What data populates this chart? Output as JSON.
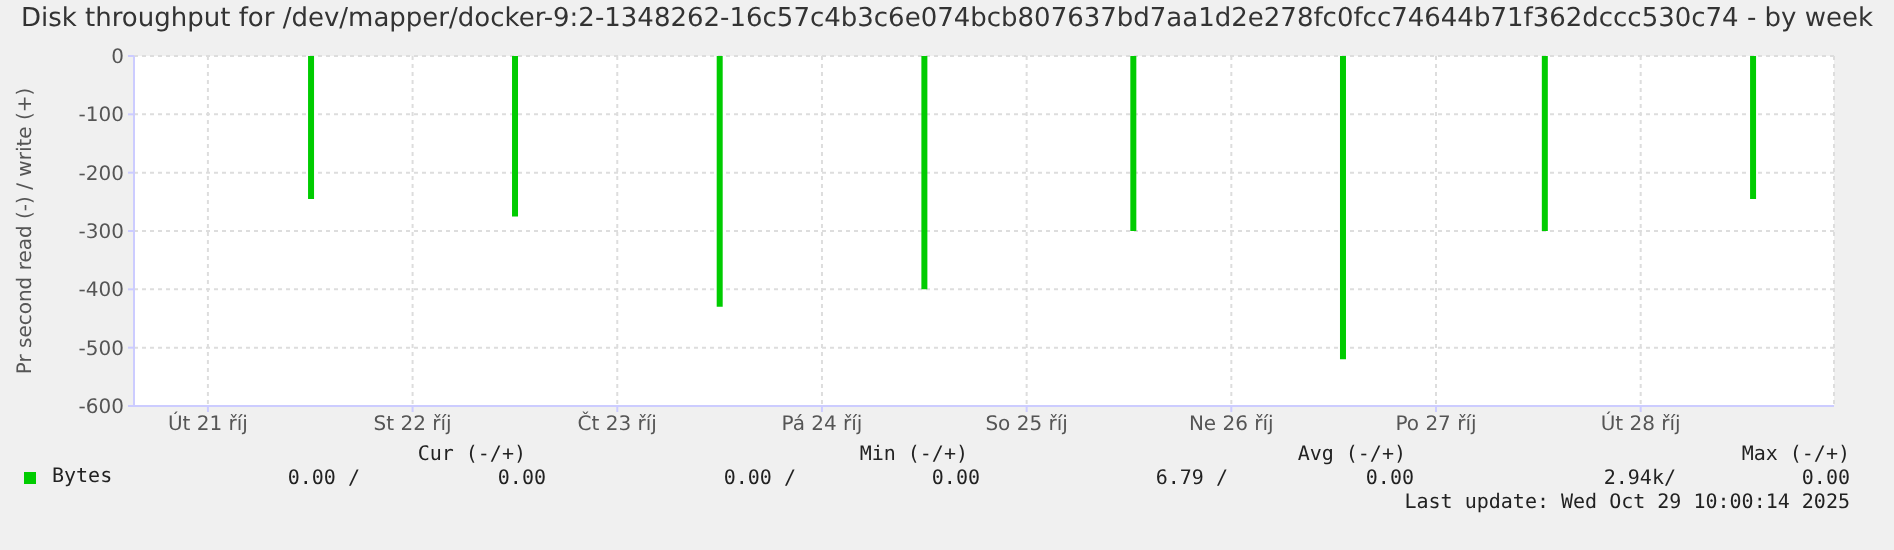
{
  "chart_data": {
    "type": "bar",
    "title": "Disk throughput for /dev/mapper/docker-9:2-1348262-16c57c4b3c6e074bcb807637bd7aa1d2e278fc0fcc74644b71f362dccc530c74 - by week",
    "ylabel": "Pr second read (-) / write (+)",
    "x": [
      "2025-10-22T00:05",
      "2025-10-23T00:00",
      "2025-10-24T00:00",
      "2025-10-25T00:00",
      "2025-10-26T00:30",
      "2025-10-27T01:05",
      "2025-10-28T00:45",
      "2025-10-29T01:10"
    ],
    "series": [
      {
        "name": "Bytes",
        "color": "#00cc00",
        "values": [
          -245,
          -275,
          -430,
          -400,
          -300,
          -520,
          -300,
          -245
        ]
      }
    ],
    "xlim": [
      "2025-10-21T03:20",
      "2025-10-29T10:40"
    ],
    "xticks": [
      {
        "value": "2025-10-21T12:00",
        "label": "Út 21 říj"
      },
      {
        "value": "2025-10-22T12:00",
        "label": "St 22 říj"
      },
      {
        "value": "2025-10-23T12:00",
        "label": "Čt 23 říj"
      },
      {
        "value": "2025-10-24T12:00",
        "label": "Pá 24 říj"
      },
      {
        "value": "2025-10-25T12:00",
        "label": "So 25 říj"
      },
      {
        "value": "2025-10-26T12:00",
        "label": "Ne 26 říj"
      },
      {
        "value": "2025-10-27T12:00",
        "label": "Po 27 říj"
      },
      {
        "value": "2025-10-28T12:00",
        "label": "Út 28 říj"
      }
    ],
    "ylim": [
      -600,
      0
    ],
    "yticks": [
      -600,
      -500,
      -400,
      -300,
      -200,
      -100,
      0
    ],
    "grid": true,
    "legend": "bottom",
    "annotations": [
      "Cur (-/+)",
      "Min (-/+)",
      "Avg (-/+)",
      "Max (-/+)",
      "0.00 /",
      "0.00",
      "0.00 /",
      "0.00",
      "6.79 /",
      "0.00",
      "2.94k/",
      "0.00",
      "Last update: Wed Oct 29 10:00:14 2025"
    ]
  }
}
